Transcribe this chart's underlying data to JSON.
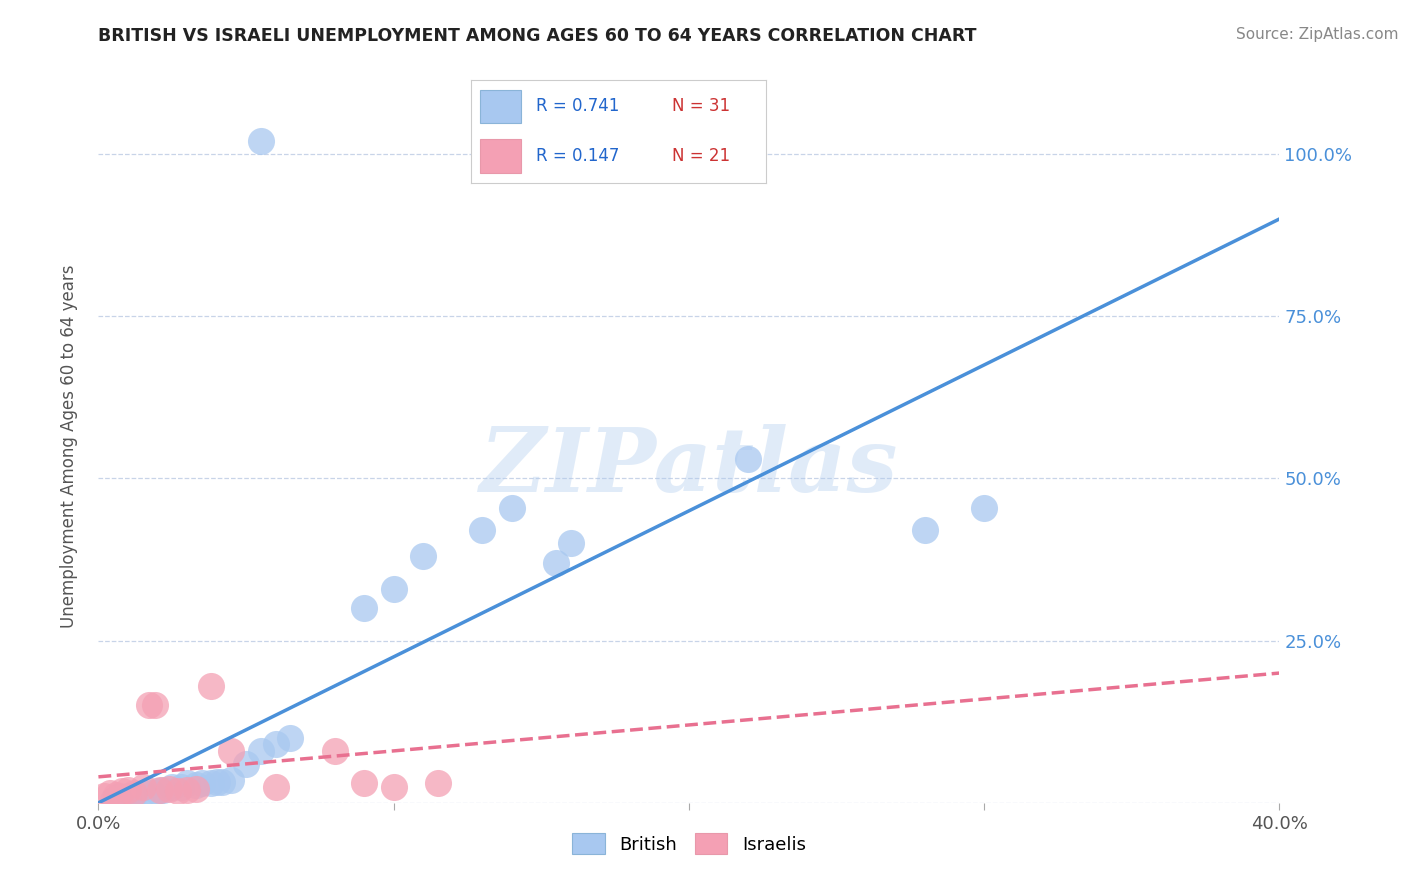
{
  "title": "BRITISH VS ISRAELI UNEMPLOYMENT AMONG AGES 60 TO 64 YEARS CORRELATION CHART",
  "source": "Source: ZipAtlas.com",
  "ylabel": "Unemployment Among Ages 60 to 64 years",
  "xlim": [
    0.0,
    0.4
  ],
  "ylim": [
    0.0,
    1.1
  ],
  "xtick_positions": [
    0.0,
    0.1,
    0.2,
    0.3,
    0.4
  ],
  "xticklabels": [
    "0.0%",
    "",
    "",
    "",
    "40.0%"
  ],
  "ytick_positions": [
    0.0,
    0.25,
    0.5,
    0.75,
    1.0
  ],
  "yticklabels_right": [
    "",
    "25.0%",
    "50.0%",
    "75.0%",
    "100.0%"
  ],
  "british_dot_color": "#a8c8f0",
  "israeli_dot_color": "#f4a0b4",
  "british_line_color": "#4a90d9",
  "israeli_line_color": "#e87090",
  "grid_color": "#c8d4e8",
  "background_color": "#ffffff",
  "watermark": "ZIPatlas",
  "legend_r_british": "R = 0.741",
  "legend_n_british": "N = 31",
  "legend_r_israeli": "R = 0.147",
  "legend_n_israeli": "N = 21",
  "british_x": [
    0.005,
    0.007,
    0.01,
    0.012,
    0.015,
    0.018,
    0.02,
    0.022,
    0.025,
    0.028,
    0.03,
    0.033,
    0.035,
    0.038,
    0.04,
    0.042,
    0.045,
    0.05,
    0.055,
    0.06,
    0.065,
    0.09,
    0.1,
    0.11,
    0.13,
    0.14,
    0.155,
    0.16,
    0.22,
    0.28,
    0.3
  ],
  "british_y": [
    0.005,
    0.01,
    0.01,
    0.012,
    0.015,
    0.015,
    0.018,
    0.02,
    0.025,
    0.025,
    0.03,
    0.028,
    0.03,
    0.03,
    0.032,
    0.032,
    0.035,
    0.06,
    0.08,
    0.09,
    0.1,
    0.3,
    0.33,
    0.38,
    0.42,
    0.455,
    0.37,
    0.4,
    0.53,
    0.42,
    0.455
  ],
  "british_outlier_x": [
    0.055
  ],
  "british_outlier_y": [
    1.02
  ],
  "israeli_x": [
    0.002,
    0.004,
    0.006,
    0.008,
    0.01,
    0.012,
    0.015,
    0.017,
    0.019,
    0.021,
    0.024,
    0.027,
    0.03,
    0.033,
    0.038,
    0.045,
    0.06,
    0.08,
    0.09,
    0.1,
    0.115
  ],
  "israeli_y": [
    0.01,
    0.015,
    0.012,
    0.018,
    0.02,
    0.015,
    0.025,
    0.15,
    0.15,
    0.02,
    0.022,
    0.018,
    0.02,
    0.022,
    0.18,
    0.08,
    0.025,
    0.08,
    0.03,
    0.025,
    0.03
  ],
  "british_line_x0": 0.0,
  "british_line_y0": 0.0,
  "british_line_x1": 0.4,
  "british_line_y1": 0.9,
  "israeli_line_x0": 0.0,
  "israeli_line_y0": 0.04,
  "israeli_line_x1": 0.4,
  "israeli_line_y1": 0.2
}
